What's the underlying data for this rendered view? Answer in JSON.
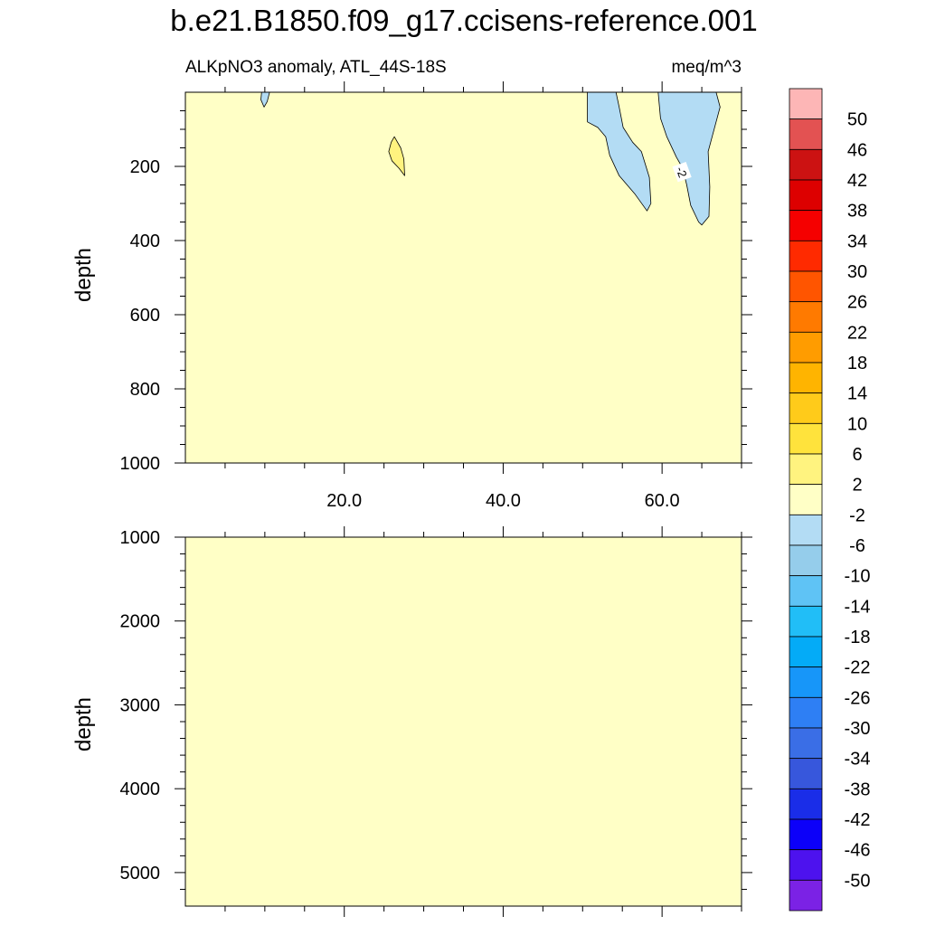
{
  "title": "b.e21.B1850.f09_g17.ccisens-reference.001",
  "chart_data": [
    {
      "type": "heatmap",
      "panel": "upper",
      "left_label": "ALKpNO3 anomaly, ATL_44S-18S",
      "right_label": "meq/m^3",
      "ylabel": "depth",
      "y_reversed": true,
      "ylim": [
        0,
        1000
      ],
      "xlim": [
        0,
        70
      ],
      "x_ticks": [
        20,
        40,
        60
      ],
      "x_tick_labels": [
        "20.0",
        "40.0",
        "60.0"
      ],
      "y_ticks": [
        200,
        400,
        600,
        800,
        1000
      ],
      "y_tick_labels": [
        "200",
        "400",
        "600",
        "800",
        "1000"
      ],
      "background_level": "-2 to 2",
      "contour_label": "-2",
      "features": [
        {
          "level": "-6 to -2",
          "note": "small patch near surface",
          "x": [
            9.5,
            10.5
          ],
          "depth": [
            0,
            40
          ]
        },
        {
          "level": "2 to 6",
          "note": "thin lens",
          "x": [
            25.5,
            27.5
          ],
          "depth": [
            120,
            230
          ]
        },
        {
          "level": "-6 to -2",
          "note": "tongue from surface",
          "x": [
            50.5,
            58.5
          ],
          "depth": [
            0,
            320
          ]
        },
        {
          "level": "-6 to -2",
          "note": "tongue from surface",
          "x": [
            59.5,
            68
          ],
          "depth": [
            0,
            360
          ]
        }
      ]
    },
    {
      "type": "heatmap",
      "panel": "lower",
      "ylabel": "depth",
      "y_reversed": true,
      "ylim": [
        1000,
        5400
      ],
      "xlim": [
        0,
        70
      ],
      "y_ticks": [
        1000,
        2000,
        3000,
        4000,
        5000
      ],
      "y_tick_labels": [
        "1000",
        "2000",
        "3000",
        "4000",
        "5000"
      ],
      "background_level": "-2 to 2",
      "features": []
    }
  ],
  "colorbar": {
    "labels": [
      "50",
      "46",
      "42",
      "38",
      "34",
      "30",
      "26",
      "22",
      "18",
      "14",
      "10",
      "6",
      "2",
      "-2",
      "-6",
      "-10",
      "-14",
      "-18",
      "-22",
      "-26",
      "-30",
      "-34",
      "-38",
      "-42",
      "-46",
      "-50"
    ],
    "colors": [
      "#fdb6b6",
      "#e35252",
      "#cc1212",
      "#dd0000",
      "#f50000",
      "#ff2a00",
      "#ff5500",
      "#ff7a00",
      "#ff9c00",
      "#ffb400",
      "#ffcb1a",
      "#ffe33c",
      "#fff37f",
      "#ffffc6",
      "#b3dcf4",
      "#95cdeb",
      "#5fc3f5",
      "#21bef7",
      "#04abf7",
      "#1796f9",
      "#2e7ff4",
      "#3a6ee6",
      "#3757dc",
      "#1a2de8",
      "#0c00f9",
      "#4d12ee",
      "#7b22e5"
    ]
  },
  "colors": {
    "neutral": "#ffffc6",
    "neg_light": "#b3dcf4",
    "pos_light": "#fff37f"
  }
}
